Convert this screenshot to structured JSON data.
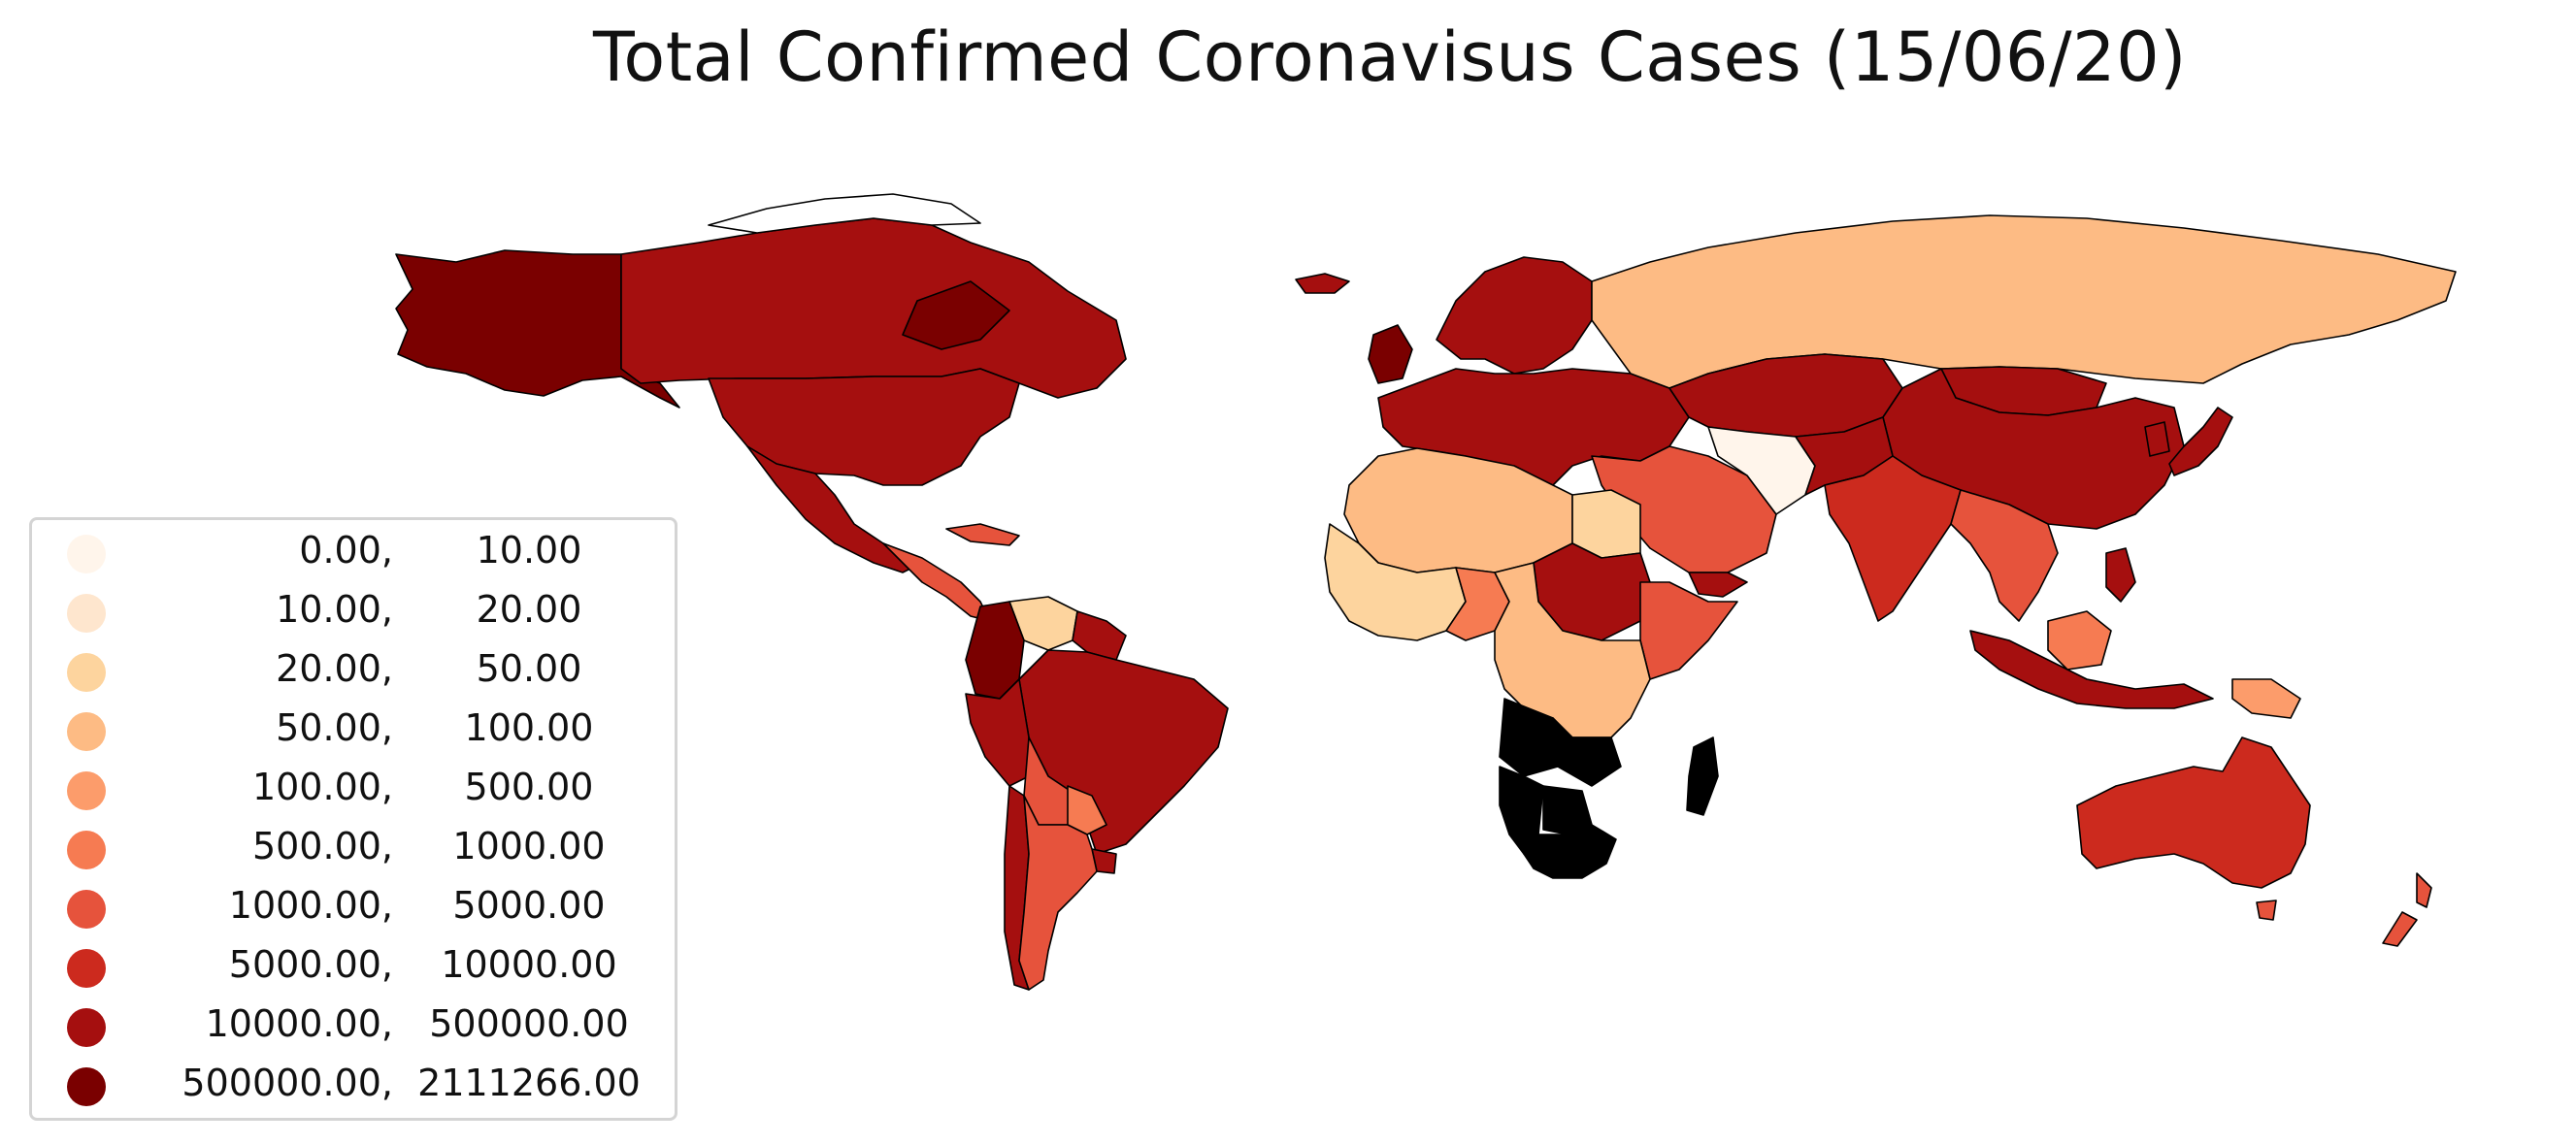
{
  "title": "Total Confirmed Coronavisus Cases (15/06/20)",
  "legend": {
    "items": [
      {
        "low": "0.00",
        "high": "10.00",
        "color": "#fff5eb"
      },
      {
        "low": "10.00",
        "high": "20.00",
        "color": "#fee6ce"
      },
      {
        "low": "20.00",
        "high": "50.00",
        "color": "#fdd49e"
      },
      {
        "low": "50.00",
        "high": "100.00",
        "color": "#fdbb84"
      },
      {
        "low": "100.00",
        "high": "500.00",
        "color": "#fc9c6b"
      },
      {
        "low": "500.00",
        "high": "1000.00",
        "color": "#f67b52"
      },
      {
        "low": "1000.00",
        "high": "5000.00",
        "color": "#e6533c"
      },
      {
        "low": "5000.00",
        "high": "10000.00",
        "color": "#cc2a1e"
      },
      {
        "low": "10000.00",
        "high": "500000.00",
        "color": "#a50f0f"
      },
      {
        "low": "500000.00",
        "high": "2111266.00",
        "color": "#7a0000"
      }
    ]
  },
  "regions": [
    {
      "name": "Alaska",
      "color": "#7a0000"
    },
    {
      "name": "Canada",
      "color": "#a50f0f"
    },
    {
      "name": "Greenland",
      "color": "#ffffff"
    },
    {
      "name": "United States",
      "color": "#7a0000"
    },
    {
      "name": "Mexico",
      "color": "#a50f0f"
    },
    {
      "name": "Central America",
      "color": "#a50f0f"
    },
    {
      "name": "Cuba",
      "color": "#e6533c"
    },
    {
      "name": "Venezuela",
      "color": "#e6533c"
    },
    {
      "name": "Guianas",
      "color": "#fdd49e"
    },
    {
      "name": "Colombia",
      "color": "#a50f0f"
    },
    {
      "name": "Brazil",
      "color": "#7a0000"
    },
    {
      "name": "Peru",
      "color": "#a50f0f"
    },
    {
      "name": "Bolivia",
      "color": "#a50f0f"
    },
    {
      "name": "Paraguay",
      "color": "#e6533c"
    },
    {
      "name": "Uruguay",
      "color": "#f67b52"
    },
    {
      "name": "Chile",
      "color": "#a50f0f"
    },
    {
      "name": "Argentina",
      "color": "#a50f0f"
    },
    {
      "name": "Iceland",
      "color": "#e6533c"
    },
    {
      "name": "Scandinavia",
      "color": "#a50f0f"
    },
    {
      "name": "Europe",
      "color": "#a50f0f"
    },
    {
      "name": "Russia",
      "color": "#7a0000"
    },
    {
      "name": "Kazakhstan",
      "color": "#a50f0f"
    },
    {
      "name": "Mongolia",
      "color": "#fdbb84"
    },
    {
      "name": "China",
      "color": "#a50f0f"
    },
    {
      "name": "Middle East",
      "color": "#a50f0f"
    },
    {
      "name": "Iran",
      "color": "#a50f0f"
    },
    {
      "name": "Central Asia",
      "color": "#a50f0f"
    },
    {
      "name": "India",
      "color": "#a50f0f"
    },
    {
      "name": "Southeast Asia",
      "color": "#e6533c"
    },
    {
      "name": "Indonesia",
      "color": "#a50f0f"
    },
    {
      "name": "Papua New Guinea",
      "color": "#fff5eb"
    },
    {
      "name": "Japan",
      "color": "#a50f0f"
    },
    {
      "name": "Australia",
      "color": "#cc2a1e"
    },
    {
      "name": "New Zealand",
      "color": "#e6533c"
    },
    {
      "name": "North Africa",
      "color": "#a50f0f"
    },
    {
      "name": "Egypt",
      "color": "#a50f0f"
    },
    {
      "name": "West Africa",
      "color": "#f67b52"
    },
    {
      "name": "Nigeria",
      "color": "#fc9c6b"
    },
    {
      "name": "Sudan",
      "color": "#cc2a1e"
    },
    {
      "name": "Horn of Africa",
      "color": "#e6533c"
    },
    {
      "name": "Central Africa",
      "color": "#e6533c"
    },
    {
      "name": "Angola",
      "color": "#fdbb84"
    },
    {
      "name": "Namibia",
      "color": "#fdd49e"
    },
    {
      "name": "Botswana",
      "color": "#fdd49e"
    },
    {
      "name": "Zambia",
      "color": "#f67b52"
    },
    {
      "name": "South Africa",
      "color": "#a50f0f"
    },
    {
      "name": "Madagascar",
      "color": "#e6533c"
    },
    {
      "name": "Yemen",
      "color": "#fdbb84"
    }
  ]
}
